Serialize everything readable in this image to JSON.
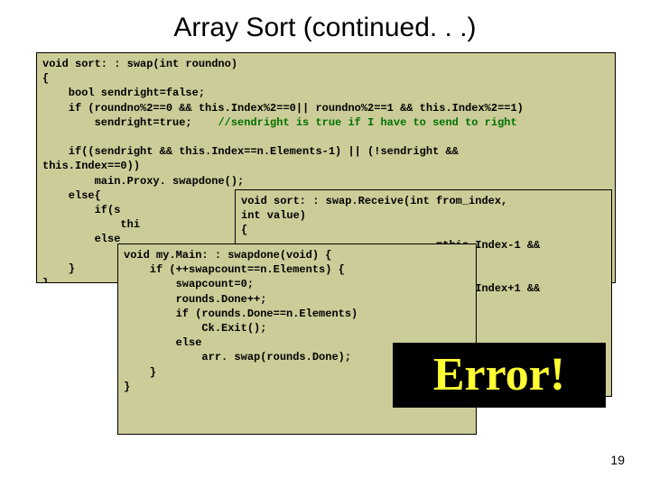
{
  "title": "Array Sort (continued. . .)",
  "code1_a": "void sort: : swap(int roundno)\n{\n    bool sendright=false;\n    if (roundno%2==0 && this.Index%2==0|| roundno%2==1 && this.Index%2==1)\n        sendright=true;    ",
  "code1_comment": "//sendright is true if I have to send to right",
  "code1_b": "\n\n    if((sendright && this.Index==n.Elements-1) || (!sendright && \nthis.Index==0))\n        main.Proxy. swapdone();\n    else{\n        if(s\n            thi\n        else \n            thi\n    }\n}",
  "code2": "void sort: : swap.Receive(int from_index,\nint value)\n{\n                              =this.Index-1 &&\n\n                              value;\n                              =this.Index+1 &&\n\n                              value;\n",
  "code3": "void my.Main: : swapdone(void) {\n    if (++swapcount==n.Elements) {\n        swapcount=0;\n        rounds.Done++;\n        if (rounds.Done==n.Elements)\n            Ck.Exit();\n        else\n            arr. swap(rounds.Done);\n    }\n}",
  "error_text": "Error!",
  "page_number": "19",
  "colors": {
    "codebox_bg": "#cccc99",
    "error_bg": "#000000",
    "error_fg": "#ffff33"
  }
}
